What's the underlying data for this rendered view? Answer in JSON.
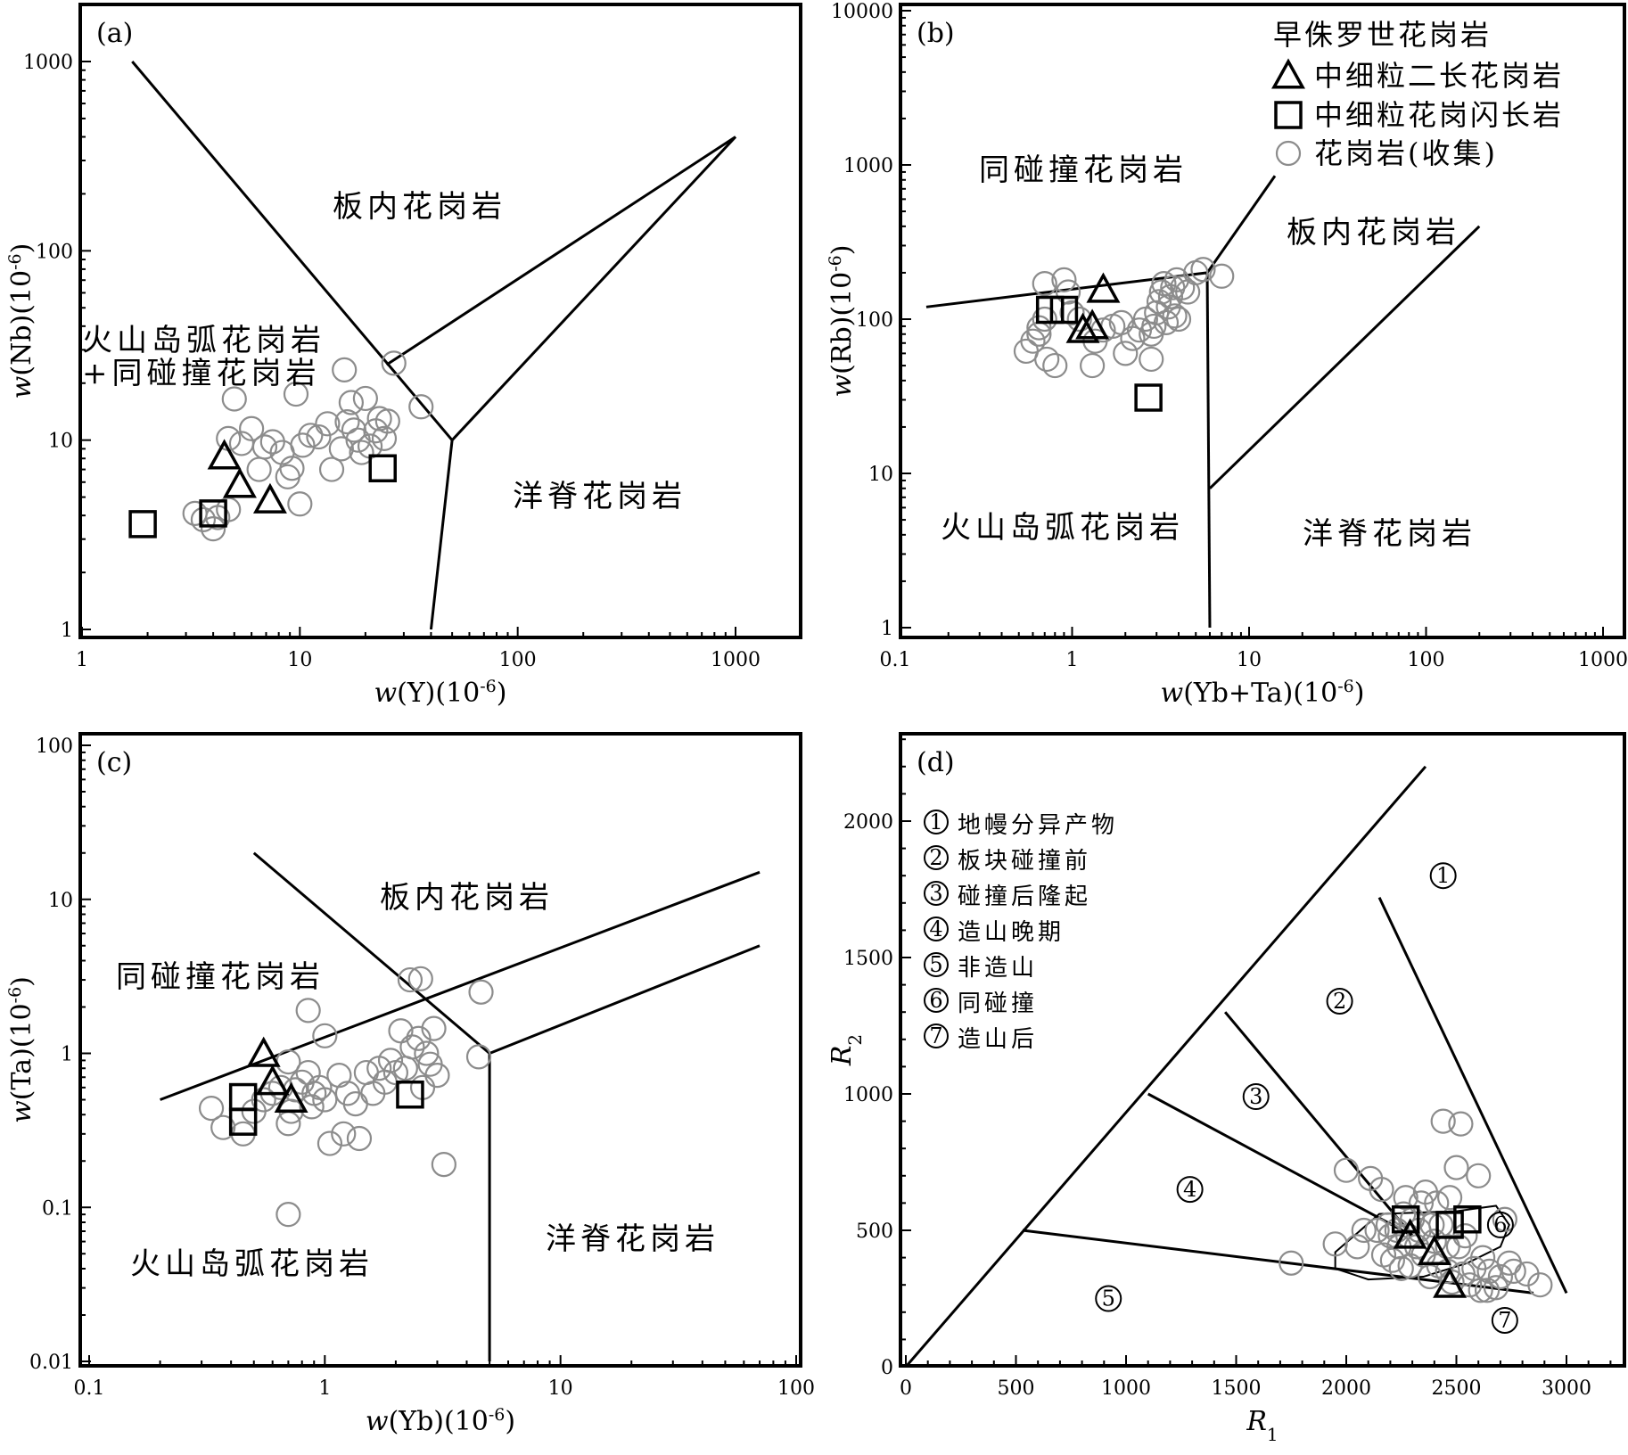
{
  "colors": {
    "frame": "#000000",
    "triangle": "#000000",
    "square": "#000000",
    "collected": "#8c8c8c"
  },
  "legend": {
    "title": "早侏罗世花岗岩",
    "items": [
      {
        "label": "中细粒二长花岗岩",
        "marker": "triangle"
      },
      {
        "label": "中细粒花岗闪长岩",
        "marker": "square"
      },
      {
        "label": "花岗岩(收集)",
        "marker": "circle"
      }
    ]
  },
  "chart_data": [
    {
      "panel": "(a)",
      "type": "scatter",
      "x_scale": "log",
      "y_scale": "log",
      "xlim": [
        1,
        2000
      ],
      "ylim": [
        1,
        2000
      ],
      "xticks": [
        "1",
        "10",
        "100",
        "1000"
      ],
      "yticks": [
        "1",
        "10",
        "100",
        "1000"
      ],
      "xlabel": {
        "italic": "w",
        "rest": "(Y)(10",
        "exp": "-6",
        "close": ")"
      },
      "ylabel": {
        "italic": "w",
        "rest": "(Nb)(10",
        "exp": "-6",
        "close": ")"
      },
      "regions": [
        "板内花岗岩",
        "火山岛弧花岗岩",
        "+同碰撞花岗岩",
        "洋脊花岗岩"
      ],
      "boundaries": [
        [
          [
            1.7,
            1000
          ],
          [
            50,
            10
          ]
        ],
        [
          [
            50,
            10
          ],
          [
            40,
            1
          ]
        ],
        [
          [
            50,
            10
          ],
          [
            1000,
            400
          ]
        ],
        [
          [
            25,
            25
          ],
          [
            1000,
            400
          ]
        ]
      ],
      "boundaries_note": "two lines from Y=50,Nb=10 and Y=25,Nb=25 up to Y=1000",
      "triangles": [
        [
          4.5,
          8.2
        ],
        [
          5.3,
          5.8
        ],
        [
          7.3,
          4.8
        ]
      ],
      "squares": [
        [
          1.9,
          3.6
        ],
        [
          4.0,
          4.1
        ],
        [
          24,
          7.1
        ]
      ],
      "circles": [
        [
          3.3,
          4.1
        ],
        [
          3.6,
          3.8
        ],
        [
          4.0,
          3.4
        ],
        [
          4.2,
          3.9
        ],
        [
          4.7,
          4.3
        ],
        [
          5.0,
          16.5
        ],
        [
          4.7,
          10.2
        ],
        [
          5.4,
          9.6
        ],
        [
          6.0,
          11.5
        ],
        [
          6.5,
          7.0
        ],
        [
          6.9,
          9.2
        ],
        [
          7.5,
          9.8
        ],
        [
          8.3,
          8.6
        ],
        [
          8.8,
          6.4
        ],
        [
          9.2,
          7.1
        ],
        [
          9.6,
          17.5
        ],
        [
          10.3,
          9.4
        ],
        [
          10.0,
          4.6
        ],
        [
          11.2,
          10.6
        ],
        [
          12.2,
          10.4
        ],
        [
          13.4,
          12.2
        ],
        [
          14.0,
          7.0
        ],
        [
          15.5,
          9.0
        ],
        [
          16.0,
          23.5
        ],
        [
          16.5,
          12.5
        ],
        [
          17.2,
          15.8
        ],
        [
          17.7,
          11.3
        ],
        [
          18.5,
          10.0
        ],
        [
          19.2,
          8.6
        ],
        [
          20.0,
          16.6
        ],
        [
          21.0,
          9.3
        ],
        [
          22.3,
          11.2
        ],
        [
          23.2,
          13.0
        ],
        [
          24.4,
          10.2
        ],
        [
          25.3,
          12.6
        ],
        [
          27.0,
          25.5
        ],
        [
          36.0,
          15.0
        ]
      ]
    },
    {
      "panel": "(b)",
      "type": "scatter",
      "x_scale": "log",
      "y_scale": "log",
      "xlim": [
        0.1,
        1000
      ],
      "ylim": [
        1,
        10000
      ],
      "xticks": [
        "0.1",
        "1",
        "10",
        "100",
        "1000"
      ],
      "yticks": [
        "1",
        "10",
        "100",
        "1000",
        "10000"
      ],
      "xlabel": {
        "italic": "w",
        "rest": "(Yb+Ta)(10",
        "exp": "-6",
        "close": ")"
      },
      "ylabel": {
        "italic": "w",
        "rest": "(Rb)(10",
        "exp": "-6",
        "close": ")"
      },
      "regions": [
        "同碰撞花岗岩",
        "板内花岗岩",
        "火山岛弧花岗岩",
        "洋脊花岗岩"
      ],
      "boundaries": [
        [
          [
            0.15,
            120
          ],
          [
            5.8,
            200
          ]
        ],
        [
          [
            5.8,
            200
          ],
          [
            6.0,
            1
          ]
        ],
        [
          [
            5.8,
            200
          ],
          [
            14,
            850
          ]
        ],
        [
          [
            6.0,
            8
          ],
          [
            200,
            400
          ]
        ]
      ],
      "triangles": [
        [
          1.5,
          155
        ],
        [
          1.3,
          90
        ],
        [
          1.15,
          85
        ]
      ],
      "squares": [
        [
          0.75,
          115
        ],
        [
          0.9,
          115
        ],
        [
          2.7,
          31
        ]
      ],
      "circles": [
        [
          0.55,
          62
        ],
        [
          0.6,
          72
        ],
        [
          0.65,
          80
        ],
        [
          0.72,
          55
        ],
        [
          0.8,
          50
        ],
        [
          0.65,
          88
        ],
        [
          0.7,
          100
        ],
        [
          0.7,
          170
        ],
        [
          0.9,
          180
        ],
        [
          0.95,
          150
        ],
        [
          1.0,
          110
        ],
        [
          1.1,
          100
        ],
        [
          1.3,
          50
        ],
        [
          1.35,
          72
        ],
        [
          1.5,
          85
        ],
        [
          1.7,
          90
        ],
        [
          1.9,
          95
        ],
        [
          2.0,
          60
        ],
        [
          2.2,
          75
        ],
        [
          2.4,
          85
        ],
        [
          2.6,
          100
        ],
        [
          2.8,
          55
        ],
        [
          2.8,
          80
        ],
        [
          2.9,
          90
        ],
        [
          3.0,
          110
        ],
        [
          3.1,
          130
        ],
        [
          3.2,
          150
        ],
        [
          3.3,
          170
        ],
        [
          3.4,
          95
        ],
        [
          3.5,
          120
        ],
        [
          3.6,
          140
        ],
        [
          3.7,
          160
        ],
        [
          3.8,
          105
        ],
        [
          3.9,
          180
        ],
        [
          4.0,
          100
        ],
        [
          4.2,
          160
        ],
        [
          4.5,
          150
        ],
        [
          5.0,
          200
        ],
        [
          5.5,
          210
        ],
        [
          7.0,
          190
        ]
      ]
    },
    {
      "panel": "(c)",
      "type": "scatter",
      "x_scale": "log",
      "y_scale": "log",
      "xlim": [
        0.1,
        100
      ],
      "ylim": [
        0.01,
        100
      ],
      "xticks": [
        "0.1",
        "1",
        "10",
        "100"
      ],
      "yticks": [
        "0.01",
        "0.1",
        "1",
        "10",
        "100"
      ],
      "xlabel": {
        "italic": "w",
        "rest": "(Yb)(10",
        "exp": "-6",
        "close": ")"
      },
      "ylabel": {
        "italic": "w",
        "rest": "(Ta)(10",
        "exp": "-6",
        "close": ")"
      },
      "regions": [
        "板内花岗岩",
        "同碰撞花岗岩",
        "火山岛弧花岗岩",
        "洋脊花岗岩"
      ],
      "boundaries": [
        [
          [
            0.5,
            20
          ],
          [
            5,
            1
          ]
        ],
        [
          [
            5,
            1
          ],
          [
            5,
            0.01
          ]
        ],
        [
          [
            0.2,
            0.5
          ],
          [
            70,
            15
          ]
        ],
        [
          [
            5,
            1
          ],
          [
            70,
            5
          ]
        ]
      ],
      "triangles": [
        [
          0.55,
          0.99
        ],
        [
          0.6,
          0.65
        ],
        [
          0.72,
          0.5
        ]
      ],
      "squares": [
        [
          0.45,
          0.52
        ],
        [
          0.45,
          0.36
        ],
        [
          2.3,
          0.54
        ]
      ],
      "circles": [
        [
          0.33,
          0.44
        ],
        [
          0.37,
          0.33
        ],
        [
          0.45,
          0.3
        ],
        [
          0.5,
          0.42
        ],
        [
          0.55,
          0.5
        ],
        [
          0.6,
          0.55
        ],
        [
          0.65,
          0.6
        ],
        [
          0.7,
          0.35
        ],
        [
          0.72,
          0.42
        ],
        [
          0.7,
          0.88
        ],
        [
          0.75,
          0.58
        ],
        [
          0.8,
          0.65
        ],
        [
          0.85,
          0.75
        ],
        [
          0.88,
          0.45
        ],
        [
          0.9,
          0.55
        ],
        [
          0.95,
          0.6
        ],
        [
          1.0,
          1.3
        ],
        [
          1.0,
          0.5
        ],
        [
          1.05,
          0.26
        ],
        [
          1.15,
          0.72
        ],
        [
          1.2,
          0.3
        ],
        [
          1.25,
          0.55
        ],
        [
          1.35,
          0.47
        ],
        [
          1.4,
          0.28
        ],
        [
          1.5,
          0.75
        ],
        [
          1.6,
          0.55
        ],
        [
          1.7,
          0.8
        ],
        [
          1.8,
          0.65
        ],
        [
          1.9,
          0.9
        ],
        [
          2.0,
          0.75
        ],
        [
          2.1,
          1.4
        ],
        [
          2.2,
          0.8
        ],
        [
          2.35,
          1.1
        ],
        [
          2.5,
          1.25
        ],
        [
          2.6,
          0.6
        ],
        [
          2.7,
          1.0
        ],
        [
          2.8,
          0.85
        ],
        [
          2.9,
          1.45
        ],
        [
          3.0,
          0.72
        ],
        [
          2.3,
          3.0
        ],
        [
          2.55,
          3.05
        ],
        [
          4.6,
          2.5
        ],
        [
          4.5,
          0.95
        ],
        [
          3.2,
          0.19
        ],
        [
          0.7,
          0.09
        ],
        [
          0.85,
          1.9
        ]
      ]
    },
    {
      "panel": "(d)",
      "type": "scatter",
      "x_scale": "linear",
      "y_scale": "linear",
      "xlim": [
        0,
        3250
      ],
      "ylim": [
        0,
        2300
      ],
      "xticks": [
        "0",
        "500",
        "1000",
        "1500",
        "2000",
        "2500",
        "3000"
      ],
      "yticks": [
        "0",
        "500",
        "1000",
        "1500",
        "2000"
      ],
      "xlabel": {
        "italic": "R",
        "sub": "1"
      },
      "ylabel": {
        "italic": "R",
        "sub": "2"
      },
      "legend": [
        {
          "num": "1",
          "label": "地幔分异产物"
        },
        {
          "num": "2",
          "label": "板块碰撞前"
        },
        {
          "num": "3",
          "label": "碰撞后隆起"
        },
        {
          "num": "4",
          "label": "造山晚期"
        },
        {
          "num": "5",
          "label": "非造山"
        },
        {
          "num": "6",
          "label": "同碰撞"
        },
        {
          "num": "7",
          "label": "造山后"
        }
      ],
      "zone_markers": [
        {
          "num": "1",
          "x": 2440,
          "y": 1800
        },
        {
          "num": "2",
          "x": 1970,
          "y": 1340
        },
        {
          "num": "3",
          "x": 1590,
          "y": 990
        },
        {
          "num": "4",
          "x": 1290,
          "y": 650
        },
        {
          "num": "5",
          "x": 920,
          "y": 250
        },
        {
          "num": "6",
          "x": 2700,
          "y": 520
        },
        {
          "num": "7",
          "x": 2720,
          "y": 170
        }
      ],
      "boundaries": [
        [
          [
            0,
            0
          ],
          [
            2360,
            2200
          ]
        ],
        [
          [
            2150,
            1720
          ],
          [
            3000,
            270
          ]
        ],
        [
          [
            1450,
            1300
          ],
          [
            2300,
            480
          ]
        ],
        [
          [
            1100,
            1000
          ],
          [
            2300,
            480
          ]
        ],
        [
          [
            530,
            500
          ],
          [
            2850,
            270
          ]
        ]
      ],
      "triangles": [
        [
          2290,
          480
        ],
        [
          2400,
          420
        ],
        [
          2470,
          300
        ]
      ],
      "squares": [
        [
          2270,
          540
        ],
        [
          2470,
          520
        ],
        [
          2550,
          540
        ]
      ],
      "circles": [
        [
          1750,
          380
        ],
        [
          1950,
          450
        ],
        [
          2000,
          720
        ],
        [
          2050,
          440
        ],
        [
          2080,
          500
        ],
        [
          2110,
          690
        ],
        [
          2140,
          500
        ],
        [
          2160,
          650
        ],
        [
          2170,
          410
        ],
        [
          2190,
          520
        ],
        [
          2200,
          480
        ],
        [
          2210,
          390
        ],
        [
          2230,
          500
        ],
        [
          2240,
          440
        ],
        [
          2250,
          360
        ],
        [
          2260,
          560
        ],
        [
          2270,
          620
        ],
        [
          2280,
          480
        ],
        [
          2290,
          370
        ],
        [
          2300,
          540
        ],
        [
          2320,
          440
        ],
        [
          2330,
          500
        ],
        [
          2340,
          600
        ],
        [
          2350,
          410
        ],
        [
          2360,
          640
        ],
        [
          2380,
          330
        ],
        [
          2390,
          520
        ],
        [
          2400,
          460
        ],
        [
          2410,
          600
        ],
        [
          2420,
          370
        ],
        [
          2430,
          520
        ],
        [
          2440,
          900
        ],
        [
          2460,
          350
        ],
        [
          2460,
          440
        ],
        [
          2470,
          620
        ],
        [
          2480,
          310
        ],
        [
          2500,
          730
        ],
        [
          2510,
          440
        ],
        [
          2520,
          890
        ],
        [
          2530,
          340
        ],
        [
          2540,
          480
        ],
        [
          2560,
          300
        ],
        [
          2580,
          360
        ],
        [
          2600,
          700
        ],
        [
          2610,
          280
        ],
        [
          2620,
          400
        ],
        [
          2640,
          280
        ],
        [
          2650,
          350
        ],
        [
          2680,
          290
        ],
        [
          2700,
          330
        ],
        [
          2720,
          540
        ],
        [
          2740,
          380
        ],
        [
          2760,
          350
        ],
        [
          2820,
          340
        ],
        [
          2880,
          300
        ]
      ]
    }
  ]
}
